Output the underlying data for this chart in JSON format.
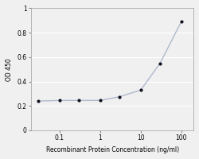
{
  "x_values": [
    0.03,
    0.1,
    0.3,
    1,
    3,
    10,
    30,
    100
  ],
  "y_values": [
    0.24,
    0.245,
    0.245,
    0.245,
    0.275,
    0.33,
    0.55,
    0.89
  ],
  "line_color": "#b0b8cc",
  "marker_color": "#111122",
  "marker_size": 3,
  "xlabel": "Recombinant Protein Concentration (ng/ml)",
  "ylabel": "OD 450",
  "xlim": [
    0.02,
    200
  ],
  "ylim": [
    0,
    1.0
  ],
  "yticks": [
    0,
    0.2,
    0.4,
    0.6,
    0.8,
    1
  ],
  "xticks": [
    0.1,
    1,
    10,
    100
  ],
  "xtick_labels": [
    "0.1",
    "1",
    "10",
    "100"
  ],
  "background_color": "#f0f0f0",
  "grid_color": "#ffffff",
  "label_fontsize": 5.5,
  "tick_fontsize": 5.5
}
